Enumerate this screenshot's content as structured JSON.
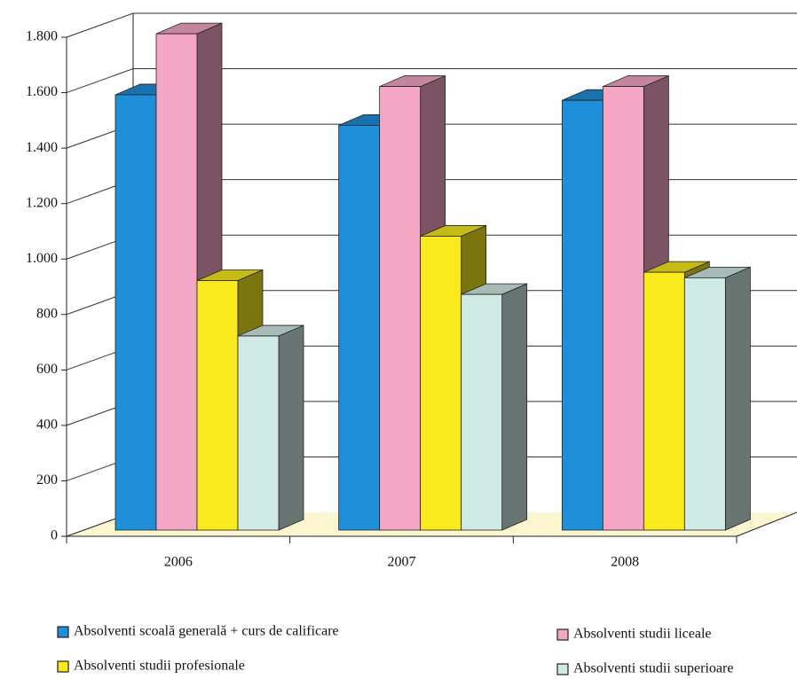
{
  "chart_data": {
    "type": "bar3d",
    "categories": [
      "2006",
      "2007",
      "2008"
    ],
    "series": [
      {
        "name": "Absolventi scoală generală + curs de calificare",
        "color": "#1f8fd9",
        "values": [
          1570,
          1460,
          1550
        ]
      },
      {
        "name": "Absolventi studii liceale",
        "color": "#f4a7c5",
        "values": [
          1790,
          1600,
          1600
        ]
      },
      {
        "name": "Absolventi studii profesionale",
        "color": "#f8ea1c",
        "values": [
          900,
          1060,
          930
        ]
      },
      {
        "name": "Absolventi studii superioare",
        "color": "#cfe9e4",
        "values": [
          700,
          850,
          910
        ]
      }
    ],
    "ylim": [
      0,
      1800
    ],
    "yticks": [
      0,
      200,
      400,
      600,
      800,
      {
        "value": 1000,
        "label": "1.000"
      },
      {
        "value": 1200,
        "label": "1.200"
      },
      {
        "value": 1400,
        "label": "1.400"
      },
      {
        "value": 1600,
        "label": "1.600"
      },
      {
        "value": 1800,
        "label": "1.800"
      }
    ],
    "grid": true,
    "legend": "bottom"
  }
}
